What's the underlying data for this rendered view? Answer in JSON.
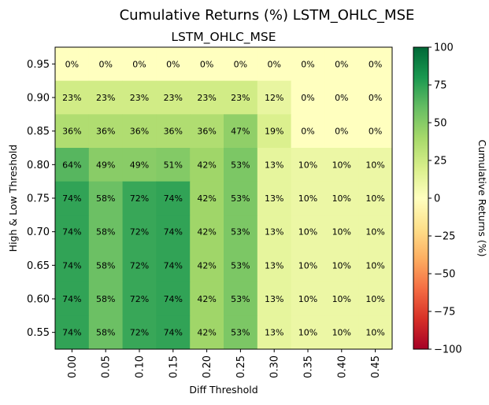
{
  "chart_data": {
    "type": "heatmap",
    "suptitle": "Cumulative Returns (%) LSTM_OHLC_MSE",
    "title": "LSTM_OHLC_MSE",
    "xlabel": "Diff Threshold",
    "ylabel": "High & Low Threshold",
    "x": [
      "0.00",
      "0.05",
      "0.10",
      "0.15",
      "0.20",
      "0.25",
      "0.30",
      "0.35",
      "0.40",
      "0.45"
    ],
    "y": [
      "0.95",
      "0.90",
      "0.85",
      "0.80",
      "0.75",
      "0.70",
      "0.65",
      "0.60",
      "0.55"
    ],
    "values": [
      [
        0,
        0,
        0,
        0,
        0,
        0,
        0,
        0,
        0,
        0
      ],
      [
        23,
        23,
        23,
        23,
        23,
        23,
        12,
        0,
        0,
        0
      ],
      [
        36,
        36,
        36,
        36,
        36,
        47,
        19,
        0,
        0,
        0
      ],
      [
        64,
        49,
        49,
        51,
        42,
        53,
        13,
        10,
        10,
        10
      ],
      [
        74,
        58,
        72,
        74,
        42,
        53,
        13,
        10,
        10,
        10
      ],
      [
        74,
        58,
        72,
        74,
        42,
        53,
        13,
        10,
        10,
        10
      ],
      [
        74,
        58,
        72,
        74,
        42,
        53,
        13,
        10,
        10,
        10
      ],
      [
        74,
        58,
        72,
        74,
        42,
        53,
        13,
        10,
        10,
        10
      ],
      [
        74,
        58,
        72,
        74,
        42,
        53,
        13,
        10,
        10,
        10
      ]
    ],
    "value_suffix": "%",
    "colormap": "RdYlGn",
    "vmin": -100,
    "vmax": 100,
    "colorbar": {
      "label": "Cumulative Returns (%)",
      "ticks": [
        "100",
        "75",
        "50",
        "25",
        "0",
        "−25",
        "−50",
        "−75",
        "−100"
      ]
    }
  }
}
